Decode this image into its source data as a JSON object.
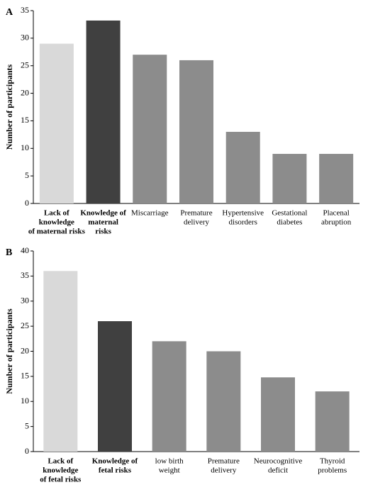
{
  "chart_data": [
    {
      "type": "bar",
      "panel": "A",
      "y_label": "Number of participants",
      "categories": [
        [
          "Lack of",
          "knowledge",
          "of maternal risks"
        ],
        [
          "Knowledge of",
          "maternal",
          "risks"
        ],
        [
          "Miscarriage"
        ],
        [
          "Premature",
          "delivery"
        ],
        [
          "Hypertensive",
          "disorders"
        ],
        [
          "Gestational",
          "diabetes"
        ],
        [
          "Placenal",
          "abruption"
        ]
      ],
      "values": [
        29,
        33.2,
        27,
        26,
        13,
        9,
        9
      ],
      "colors": [
        "#d9d9d9",
        "#404040",
        "#8c8c8c",
        "#8c8c8c",
        "#8c8c8c",
        "#8c8c8c",
        "#8c8c8c"
      ],
      "ylim": [
        0,
        35
      ],
      "yticks": [
        0,
        5,
        10,
        15,
        20,
        25,
        30,
        35
      ]
    },
    {
      "type": "bar",
      "panel": "B",
      "y_label": "Number of participants",
      "categories": [
        [
          "Lack of",
          "knowledge",
          "of fetal risks"
        ],
        [
          "Knowledge of",
          "fetal risks"
        ],
        [
          "low birth",
          "weight"
        ],
        [
          "Premature",
          "delivery"
        ],
        [
          "Neurocognitive",
          "deficit"
        ],
        [
          "Thyroid",
          "problems"
        ]
      ],
      "values": [
        36,
        26,
        22,
        20,
        14.8,
        12
      ],
      "colors": [
        "#d9d9d9",
        "#404040",
        "#8c8c8c",
        "#8c8c8c",
        "#8c8c8c",
        "#8c8c8c"
      ],
      "ylim": [
        0,
        40
      ],
      "yticks": [
        0,
        5,
        10,
        15,
        20,
        25,
        30,
        35,
        40
      ]
    }
  ]
}
